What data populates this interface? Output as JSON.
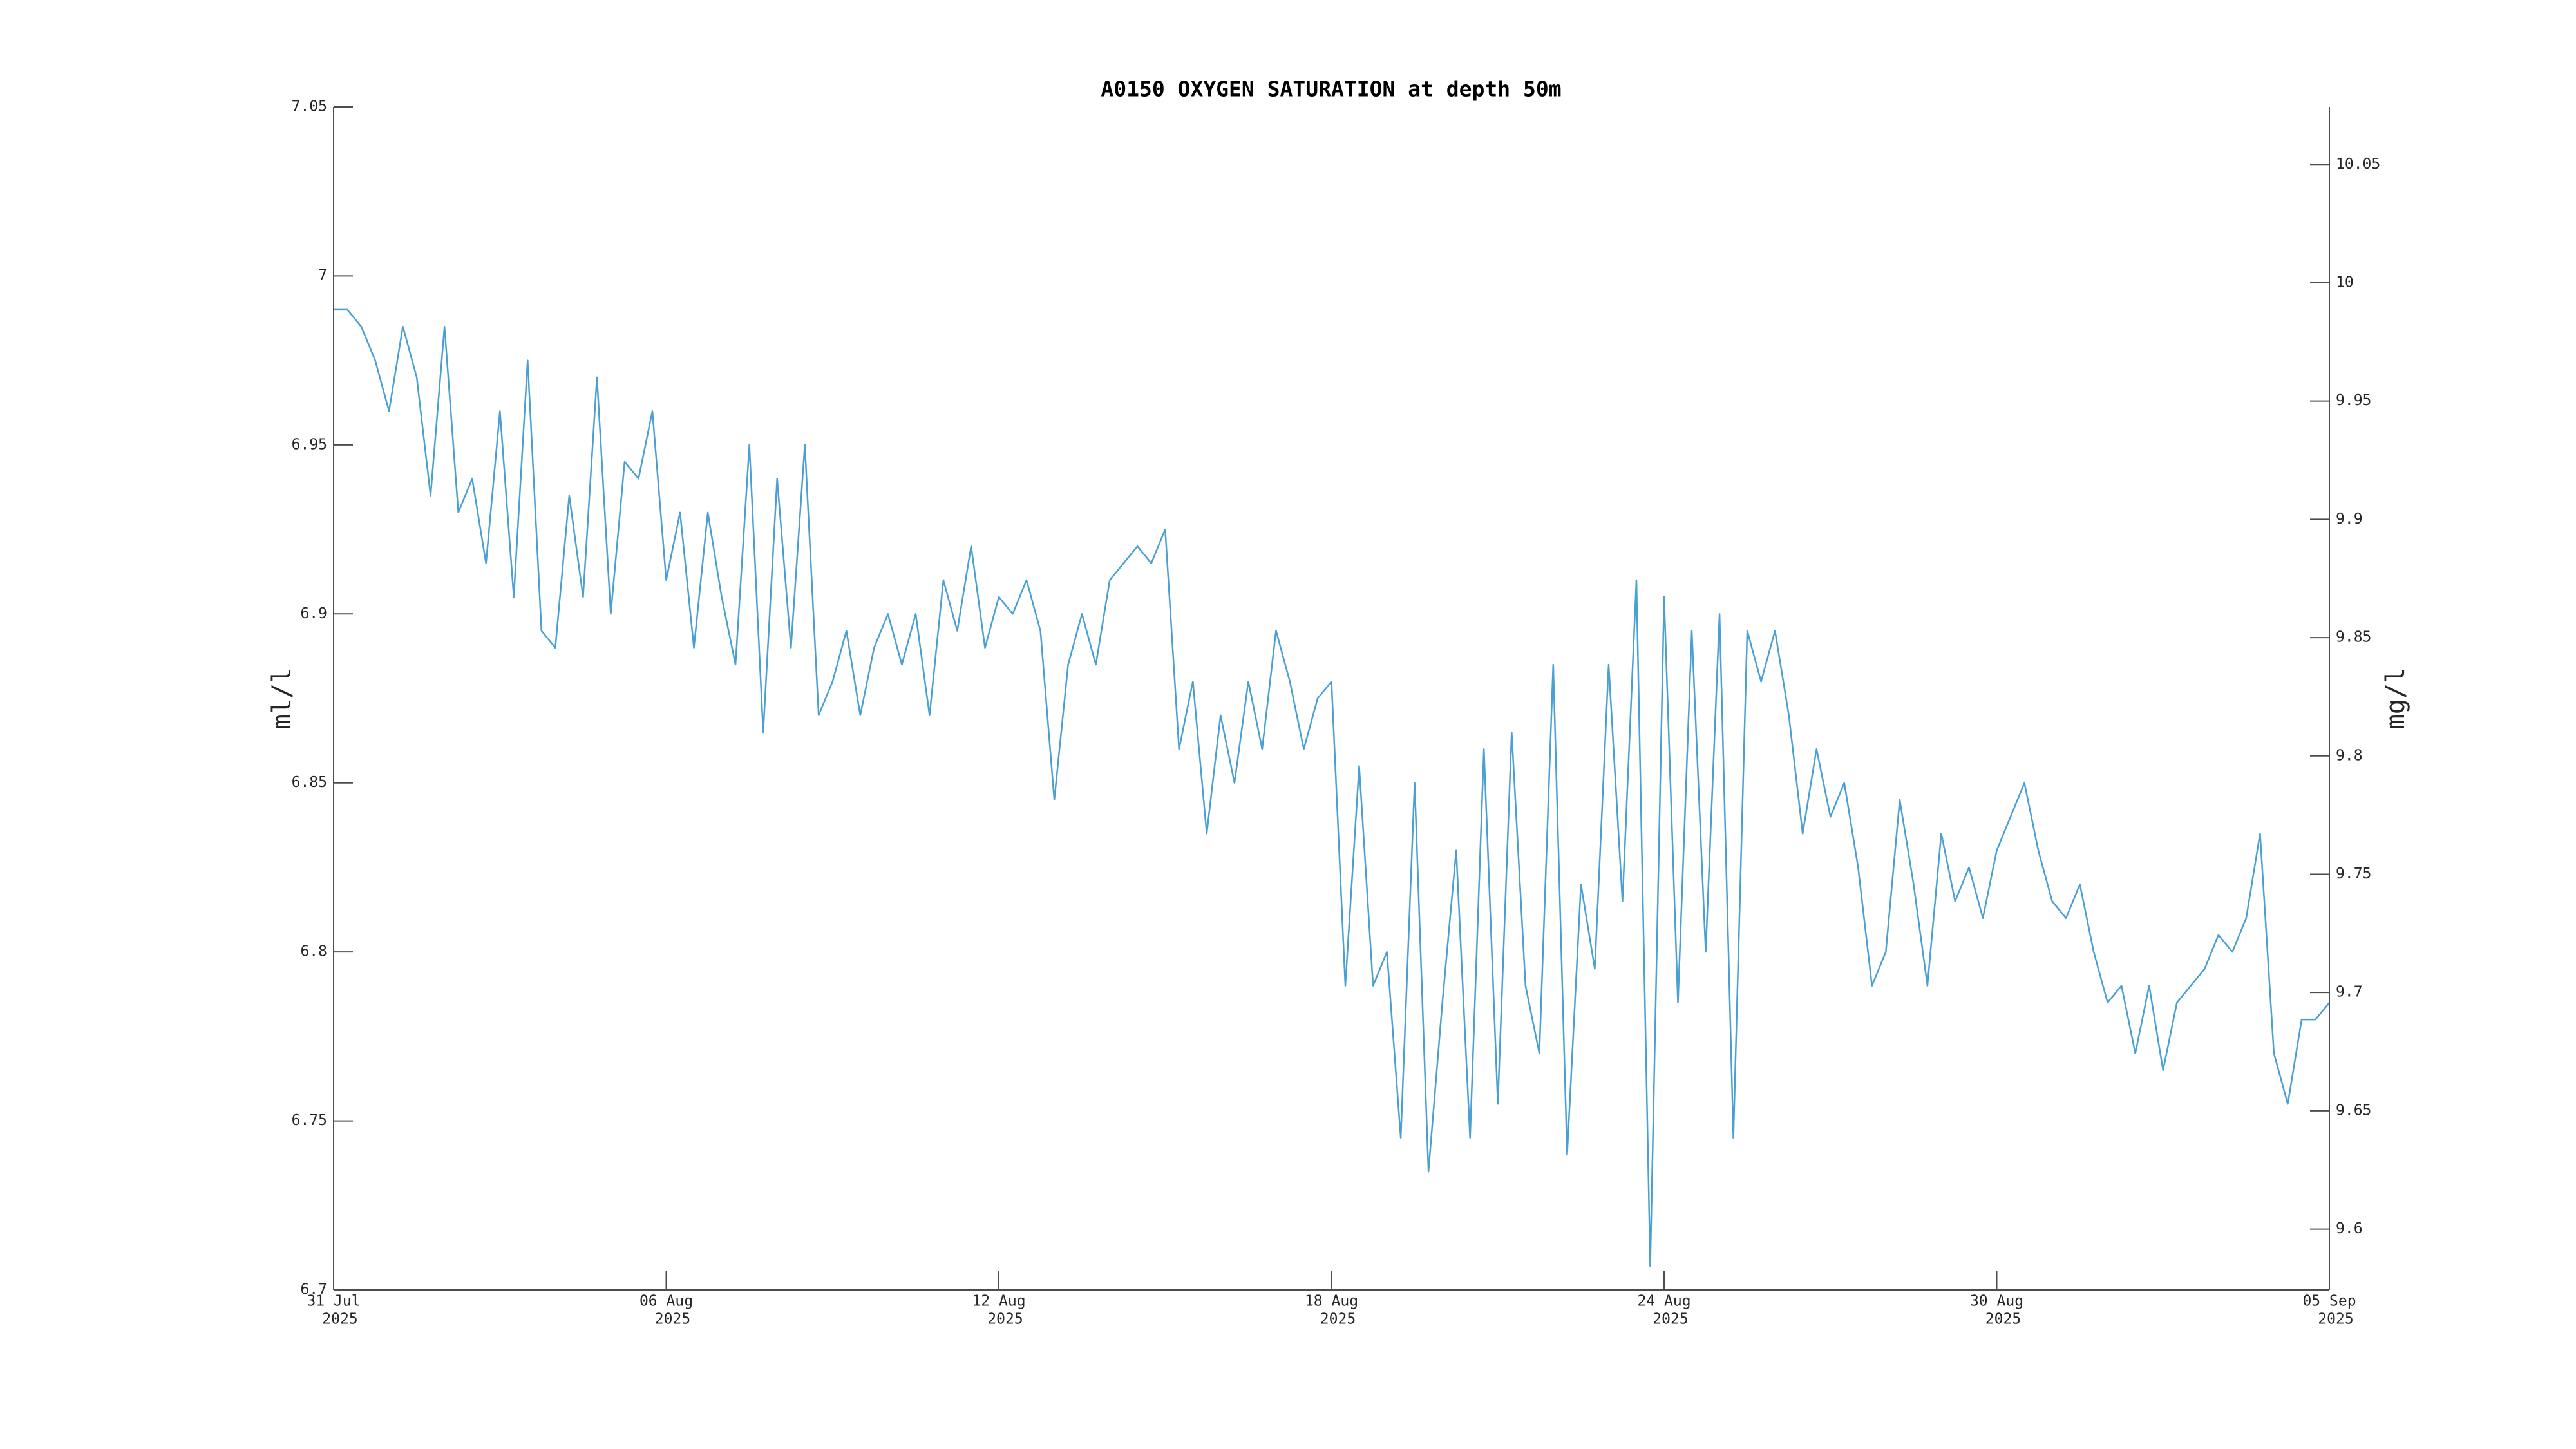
{
  "chart_data": {
    "type": "line",
    "title": "A0150 OXYGEN SATURATION at depth 50m",
    "ylabel": "ml/l",
    "y2label": "mg/l",
    "xlim": [
      0,
      36
    ],
    "xticks": [
      {
        "value": 0,
        "label": [
          "31 Jul",
          "2025"
        ]
      },
      {
        "value": 6,
        "label": [
          "06 Aug",
          "2025"
        ]
      },
      {
        "value": 12,
        "label": [
          "12 Aug",
          "2025"
        ]
      },
      {
        "value": 18,
        "label": [
          "18 Aug",
          "2025"
        ]
      },
      {
        "value": 24,
        "label": [
          "24 Aug",
          "2025"
        ]
      },
      {
        "value": 30,
        "label": [
          "30 Aug",
          "2025"
        ]
      },
      {
        "value": 36,
        "label": [
          "05 Sep",
          "2025"
        ]
      }
    ],
    "ylim": [
      6.7,
      7.05
    ],
    "yticks": [
      6.7,
      6.75,
      6.8,
      6.85,
      6.9,
      6.95,
      {
        "value": 7,
        "label": "7"
      },
      7.05
    ],
    "y2lim": [
      9.5743,
      10.0743
    ],
    "y2ticks": [
      9.6,
      9.65,
      9.7,
      9.75,
      9.8,
      9.85,
      9.9,
      9.95,
      {
        "value": 10,
        "label": "10"
      },
      10.05
    ],
    "series": [
      {
        "color": "#4a9fd4",
        "x": [
          0,
          0.25,
          0.5,
          0.75,
          1,
          1.25,
          1.5,
          1.75,
          2,
          2.25,
          2.5,
          2.75,
          3,
          3.25,
          3.5,
          3.75,
          4,
          4.25,
          4.5,
          4.75,
          5,
          5.25,
          5.5,
          5.75,
          6,
          6.25,
          6.5,
          6.75,
          7,
          7.25,
          7.5,
          7.75,
          8,
          8.25,
          8.5,
          8.75,
          9,
          9.25,
          9.5,
          9.75,
          10,
          10.25,
          10.5,
          10.75,
          11,
          11.25,
          11.5,
          11.75,
          12,
          12.25,
          12.5,
          12.75,
          13,
          13.25,
          13.5,
          13.75,
          14,
          14.25,
          14.5,
          14.75,
          15,
          15.25,
          15.5,
          15.75,
          16,
          16.25,
          16.5,
          16.75,
          17,
          17.25,
          17.5,
          17.75,
          18,
          18.25,
          18.5,
          18.75,
          19,
          19.25,
          19.5,
          19.75,
          20,
          20.25,
          20.5,
          20.75,
          21,
          21.25,
          21.5,
          21.75,
          22,
          22.25,
          22.5,
          22.75,
          23,
          23.25,
          23.5,
          23.75,
          24,
          24.25,
          24.5,
          24.75,
          25,
          25.25,
          25.5,
          25.75,
          26,
          26.25,
          26.5,
          26.75,
          27,
          27.25,
          27.5,
          27.75,
          28,
          28.25,
          28.5,
          28.75,
          29,
          29.25,
          29.5,
          29.75,
          30,
          30.25,
          30.5,
          30.75,
          31,
          31.25,
          31.5,
          31.75,
          32,
          32.25,
          32.5,
          32.75,
          33,
          33.25,
          33.5,
          33.75,
          34,
          34.25,
          34.5,
          34.75,
          35,
          35.25,
          35.5,
          35.75,
          36
        ],
        "values": [
          6.99,
          6.99,
          6.985,
          6.975,
          6.96,
          6.985,
          6.97,
          6.935,
          6.985,
          6.93,
          6.94,
          6.915,
          6.96,
          6.905,
          6.975,
          6.895,
          6.89,
          6.935,
          6.905,
          6.97,
          6.9,
          6.945,
          6.94,
          6.96,
          6.91,
          6.93,
          6.89,
          6.93,
          6.905,
          6.885,
          6.95,
          6.865,
          6.94,
          6.89,
          6.95,
          6.87,
          6.88,
          6.895,
          6.87,
          6.89,
          6.9,
          6.885,
          6.9,
          6.87,
          6.91,
          6.895,
          6.92,
          6.89,
          6.905,
          6.9,
          6.91,
          6.895,
          6.845,
          6.885,
          6.9,
          6.885,
          6.91,
          6.915,
          6.92,
          6.915,
          6.925,
          6.86,
          6.88,
          6.835,
          6.87,
          6.85,
          6.88,
          6.86,
          6.895,
          6.88,
          6.86,
          6.875,
          6.88,
          6.79,
          6.855,
          6.79,
          6.8,
          6.745,
          6.85,
          6.735,
          6.785,
          6.83,
          6.745,
          6.86,
          6.755,
          6.865,
          6.79,
          6.77,
          6.885,
          6.74,
          6.82,
          6.795,
          6.885,
          6.815,
          6.91,
          6.707,
          6.905,
          6.785,
          6.895,
          6.8,
          6.9,
          6.745,
          6.895,
          6.88,
          6.895,
          6.87,
          6.835,
          6.86,
          6.84,
          6.85,
          6.825,
          6.79,
          6.8,
          6.845,
          6.82,
          6.79,
          6.835,
          6.815,
          6.825,
          6.81,
          6.83,
          6.84,
          6.85,
          6.83,
          6.815,
          6.81,
          6.82,
          6.8,
          6.785,
          6.79,
          6.77,
          6.79,
          6.765,
          6.785,
          6.79,
          6.795,
          6.805,
          6.8,
          6.81,
          6.835,
          6.77,
          6.755,
          6.78,
          6.78,
          6.785
        ]
      }
    ]
  }
}
